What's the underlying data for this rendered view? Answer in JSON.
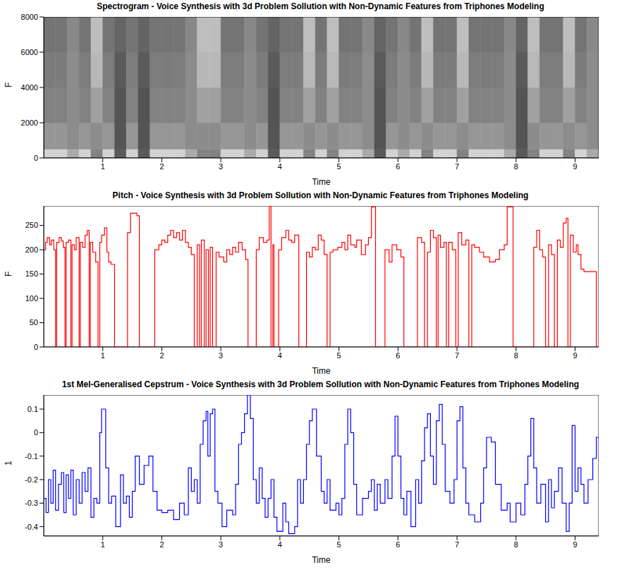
{
  "chart_data": [
    {
      "type": "heatmap",
      "title": "Spectrogram - Voice Synthesis with 3d Problem Sollution with Non-Dynamic Features from Triphones Modeling",
      "x_label": "Time",
      "y_label": "F",
      "xlim": [
        0,
        9.4
      ],
      "xticks": [
        1,
        2,
        3,
        4,
        5,
        6,
        7,
        8,
        9
      ],
      "ylim": [
        0,
        8000
      ],
      "yticks": [
        0,
        2000,
        4000,
        6000,
        8000
      ],
      "x_bins": [
        0,
        0.2,
        0.4,
        0.6,
        0.8,
        1,
        1.2,
        1.4,
        1.6,
        1.8,
        2,
        2.2,
        2.4,
        2.6,
        2.8,
        3,
        3.2,
        3.4,
        3.6,
        3.8,
        4,
        4.2,
        4.4,
        4.6,
        4.8,
        5,
        5.2,
        5.4,
        5.6,
        5.8,
        6,
        6.2,
        6.4,
        6.6,
        6.8,
        7,
        7.2,
        7.4,
        7.6,
        7.8,
        8,
        8.2,
        8.4,
        8.6,
        8.8,
        9,
        9.2,
        9.4
      ],
      "y_bins": [
        0,
        500,
        2000,
        4000,
        6000,
        8000
      ],
      "zlim": [
        0,
        1
      ],
      "cells": [
        [
          0.85,
          0.85,
          0.65,
          0.85,
          0.45,
          0.85,
          0.25,
          0.85,
          0.25,
          0.85,
          0.85,
          0.85,
          0.65,
          0.45,
          0.45,
          0.85,
          0.85,
          0.65,
          0.85,
          0.25,
          0.85,
          0.85,
          0.45,
          0.85,
          0.45,
          0.85,
          0.85,
          0.65,
          0.25,
          0.85,
          0.65,
          0.85,
          0.45,
          0.85,
          0.85,
          0.45,
          0.85,
          0.85,
          0.85,
          0.65,
          0.25,
          0.45,
          0.85,
          0.85,
          0.45,
          0.85,
          0.65
        ],
        [
          0.55,
          0.55,
          0.5,
          0.55,
          0.5,
          0.55,
          0.22,
          0.55,
          0.22,
          0.55,
          0.55,
          0.55,
          0.5,
          0.5,
          0.5,
          0.55,
          0.55,
          0.5,
          0.55,
          0.22,
          0.55,
          0.55,
          0.5,
          0.55,
          0.5,
          0.55,
          0.55,
          0.5,
          0.22,
          0.55,
          0.5,
          0.55,
          0.5,
          0.55,
          0.55,
          0.5,
          0.55,
          0.55,
          0.55,
          0.5,
          0.22,
          0.5,
          0.55,
          0.55,
          0.5,
          0.55,
          0.5
        ],
        [
          0.45,
          0.45,
          0.5,
          0.45,
          0.6,
          0.45,
          0.22,
          0.45,
          0.22,
          0.45,
          0.45,
          0.45,
          0.5,
          0.6,
          0.6,
          0.45,
          0.45,
          0.5,
          0.45,
          0.22,
          0.45,
          0.45,
          0.6,
          0.45,
          0.6,
          0.45,
          0.45,
          0.5,
          0.22,
          0.45,
          0.5,
          0.45,
          0.6,
          0.45,
          0.45,
          0.6,
          0.45,
          0.45,
          0.45,
          0.5,
          0.22,
          0.6,
          0.45,
          0.45,
          0.6,
          0.45,
          0.5
        ],
        [
          0.42,
          0.42,
          0.5,
          0.42,
          0.72,
          0.42,
          0.25,
          0.42,
          0.25,
          0.42,
          0.42,
          0.42,
          0.5,
          0.72,
          0.72,
          0.42,
          0.42,
          0.5,
          0.42,
          0.25,
          0.42,
          0.42,
          0.72,
          0.42,
          0.72,
          0.42,
          0.42,
          0.5,
          0.25,
          0.42,
          0.5,
          0.42,
          0.72,
          0.42,
          0.42,
          0.72,
          0.42,
          0.42,
          0.42,
          0.5,
          0.25,
          0.72,
          0.42,
          0.42,
          0.72,
          0.42,
          0.5
        ],
        [
          0.38,
          0.38,
          0.48,
          0.38,
          0.75,
          0.38,
          0.3,
          0.38,
          0.3,
          0.38,
          0.38,
          0.38,
          0.48,
          0.75,
          0.75,
          0.38,
          0.38,
          0.48,
          0.38,
          0.3,
          0.38,
          0.38,
          0.75,
          0.38,
          0.75,
          0.38,
          0.38,
          0.48,
          0.3,
          0.38,
          0.48,
          0.38,
          0.75,
          0.38,
          0.38,
          0.75,
          0.38,
          0.38,
          0.38,
          0.48,
          0.3,
          0.75,
          0.38,
          0.38,
          0.75,
          0.38,
          0.48
        ]
      ]
    },
    {
      "type": "line",
      "title": "Pitch - Voice Synthesis with 3d Problem Sollution with Non-Dynamic Features from Triphones Modeling",
      "x_label": "Time",
      "y_label": "F",
      "xlim": [
        0,
        9.4
      ],
      "xticks": [
        1,
        2,
        3,
        4,
        5,
        6,
        7,
        8,
        9
      ],
      "ylim": [
        0,
        290
      ],
      "yticks": [
        0,
        50,
        100,
        150,
        200,
        250
      ],
      "color": "#ff0000",
      "line_style": "step",
      "x": [
        0,
        0.03,
        0.06,
        0.1,
        0.13,
        0.17,
        0.2,
        0.22,
        0.26,
        0.3,
        0.33,
        0.36,
        0.38,
        0.42,
        0.46,
        0.48,
        0.52,
        0.55,
        0.6,
        0.62,
        0.66,
        0.7,
        0.74,
        0.77,
        0.79,
        0.83,
        0.88,
        0.92,
        0.95,
        0.98,
        1.03,
        1.07,
        1.1,
        1.14,
        1.2,
        1.42,
        1.47,
        1.58,
        1.62,
        1.88,
        1.95,
        2,
        2.05,
        2.1,
        2.15,
        2.2,
        2.25,
        2.3,
        2.35,
        2.4,
        2.45,
        2.5,
        2.55,
        2.6,
        2.64,
        2.67,
        2.72,
        2.75,
        2.79,
        2.82,
        2.86,
        2.92,
        2.97,
        3.05,
        3.1,
        3.15,
        3.2,
        3.25,
        3.3,
        3.36,
        3.42,
        3.46,
        3.6,
        3.65,
        3.72,
        3.78,
        3.82,
        3.85,
        3.88,
        3.9,
        3.98,
        4.03,
        4.1,
        4.15,
        4.2,
        4.25,
        4.32,
        4.45,
        4.5,
        4.55,
        4.6,
        4.65,
        4.7,
        4.75,
        4.8,
        4.85,
        4.9,
        4.98,
        5.05,
        5.1,
        5.15,
        5.2,
        5.27,
        5.3,
        5.38,
        5.45,
        5.5,
        5.55,
        5.62,
        5.78,
        5.85,
        5.9,
        5.98,
        6.05,
        6.1,
        6.33,
        6.4,
        6.45,
        6.5,
        6.55,
        6.6,
        6.65,
        6.68,
        6.72,
        6.78,
        6.82,
        6.86,
        6.92,
        6.98,
        7.02,
        7.08,
        7.15,
        7.2,
        7.25,
        7.3,
        7.38,
        7.45,
        7.55,
        7.65,
        7.72,
        7.8,
        7.85,
        7.95,
        8.3,
        8.35,
        8.4,
        8.45,
        8.5,
        8.55,
        8.6,
        8.65,
        8.7,
        8.75,
        8.8,
        8.85,
        8.88,
        8.92,
        8.97,
        9.02,
        9.05,
        9.1,
        9.15,
        9.36,
        9.4
      ],
      "values": [
        200,
        215,
        225,
        210,
        220,
        200,
        0,
        215,
        225,
        218,
        205,
        0,
        215,
        220,
        0,
        210,
        200,
        225,
        0,
        215,
        205,
        230,
        240,
        0,
        215,
        195,
        175,
        0,
        215,
        230,
        245,
        195,
        175,
        170,
        0,
        235,
        275,
        270,
        0,
        200,
        210,
        220,
        215,
        230,
        240,
        225,
        235,
        220,
        240,
        215,
        205,
        190,
        0,
        210,
        0,
        220,
        0,
        200,
        0,
        205,
        0,
        195,
        185,
        175,
        200,
        190,
        205,
        195,
        215,
        200,
        180,
        0,
        200,
        225,
        215,
        220,
        290,
        0,
        210,
        0,
        200,
        225,
        240,
        220,
        215,
        230,
        0,
        195,
        185,
        205,
        200,
        230,
        220,
        190,
        0,
        195,
        200,
        205,
        215,
        200,
        230,
        210,
        205,
        220,
        190,
        210,
        225,
        288,
        0,
        200,
        175,
        210,
        200,
        185,
        0,
        225,
        215,
        0,
        195,
        240,
        225,
        0,
        230,
        205,
        215,
        0,
        215,
        200,
        0,
        235,
        210,
        220,
        0,
        210,
        205,
        195,
        185,
        175,
        180,
        200,
        210,
        288,
        0,
        205,
        240,
        200,
        185,
        0,
        210,
        190,
        0,
        220,
        205,
        255,
        265,
        0,
        230,
        195,
        210,
        190,
        160,
        155,
        0,
        0
      ]
    },
    {
      "type": "line",
      "title": "1st Mel-Generalised Cepstrum - Voice Synthesis with 3d Problem Sollution with Non-Dynamic Features from Triphones Modeling",
      "x_label": "Time",
      "y_label": "1",
      "xlim": [
        0,
        9.4
      ],
      "xticks": [
        1,
        2,
        3,
        4,
        5,
        6,
        7,
        8,
        9
      ],
      "ylim": [
        -0.44,
        0.16
      ],
      "yticks": [
        -0.4,
        -0.3,
        -0.2,
        -0.1,
        0,
        0.1
      ],
      "color": "#0000ff",
      "line_style": "step",
      "x": [
        0,
        0.04,
        0.08,
        0.12,
        0.16,
        0.2,
        0.25,
        0.3,
        0.34,
        0.38,
        0.42,
        0.46,
        0.5,
        0.55,
        0.6,
        0.65,
        0.7,
        0.75,
        0.8,
        0.85,
        0.9,
        0.95,
        0.98,
        1.05,
        1.1,
        1.15,
        1.22,
        1.3,
        1.35,
        1.4,
        1.45,
        1.5,
        1.55,
        1.62,
        1.7,
        1.78,
        1.85,
        1.92,
        2,
        2.1,
        2.2,
        2.3,
        2.38,
        2.45,
        2.5,
        2.55,
        2.6,
        2.65,
        2.7,
        2.75,
        2.78,
        2.82,
        2.86,
        2.9,
        2.95,
        3.02,
        3.1,
        3.2,
        3.25,
        3.3,
        3.35,
        3.4,
        3.45,
        3.5,
        3.55,
        3.6,
        3.65,
        3.7,
        3.75,
        3.8,
        3.85,
        3.9,
        3.95,
        4.05,
        4.1,
        4.15,
        4.25,
        4.3,
        4.35,
        4.4,
        4.45,
        4.5,
        4.55,
        4.62,
        4.7,
        4.75,
        4.8,
        4.85,
        4.95,
        5,
        5.05,
        5.1,
        5.15,
        5.2,
        5.25,
        5.3,
        5.4,
        5.5,
        5.55,
        5.6,
        5.65,
        5.7,
        5.78,
        5.83,
        5.9,
        5.95,
        6,
        6.05,
        6.1,
        6.15,
        6.22,
        6.3,
        6.35,
        6.4,
        6.45,
        6.5,
        6.55,
        6.6,
        6.65,
        6.7,
        6.75,
        6.8,
        6.88,
        6.95,
        7,
        7.05,
        7.1,
        7.15,
        7.2,
        7.3,
        7.4,
        7.45,
        7.5,
        7.58,
        7.65,
        7.75,
        7.85,
        7.9,
        8,
        8.08,
        8.15,
        8.2,
        8.25,
        8.3,
        8.35,
        8.42,
        8.5,
        8.55,
        8.6,
        8.65,
        8.72,
        8.78,
        8.85,
        8.9,
        8.95,
        9,
        9.05,
        9.1,
        9.15,
        9.22,
        9.3,
        9.36,
        9.4
      ],
      "values": [
        -0.28,
        -0.34,
        -0.2,
        -0.3,
        -0.16,
        -0.33,
        -0.22,
        -0.17,
        -0.34,
        -0.18,
        -0.28,
        -0.16,
        -0.35,
        -0.2,
        -0.3,
        -0.17,
        -0.25,
        -0.15,
        -0.36,
        -0.28,
        -0.3,
        0,
        0.1,
        -0.15,
        -0.3,
        -0.27,
        -0.4,
        -0.18,
        -0.3,
        -0.27,
        -0.36,
        -0.25,
        -0.1,
        -0.22,
        -0.14,
        -0.1,
        -0.25,
        -0.33,
        -0.34,
        -0.33,
        -0.37,
        -0.3,
        -0.35,
        -0.15,
        -0.25,
        -0.2,
        -0.3,
        -0.05,
        0.05,
        0.09,
        -0.1,
        0.08,
        0.1,
        -0.25,
        -0.3,
        -0.4,
        -0.33,
        -0.35,
        -0.22,
        -0.05,
        0,
        0.08,
        0.16,
        0.06,
        -0.2,
        -0.3,
        -0.15,
        -0.28,
        -0.36,
        -0.28,
        -0.2,
        -0.36,
        -0.42,
        -0.3,
        -0.38,
        -0.43,
        -0.4,
        -0.2,
        -0.3,
        -0.2,
        -0.05,
        0.05,
        0.1,
        -0.1,
        -0.25,
        -0.3,
        -0.2,
        -0.33,
        -0.3,
        -0.35,
        -0.28,
        -0.05,
        0.1,
        0,
        -0.22,
        -0.35,
        -0.28,
        -0.25,
        -0.2,
        -0.33,
        -0.22,
        -0.3,
        -0.2,
        -0.28,
        -0.1,
        0.07,
        -0.1,
        -0.28,
        -0.35,
        -0.25,
        -0.4,
        -0.2,
        -0.3,
        -0.12,
        0.02,
        0.08,
        -0.1,
        -0.22,
        0.05,
        0.12,
        -0.05,
        -0.25,
        -0.3,
        -0.2,
        0.05,
        0.11,
        -0.15,
        -0.3,
        -0.35,
        -0.38,
        -0.3,
        -0.15,
        -0.02,
        -0.04,
        -0.22,
        -0.33,
        -0.3,
        -0.38,
        -0.3,
        -0.35,
        -0.22,
        -0.1,
        0.06,
        -0.15,
        -0.3,
        -0.22,
        -0.38,
        -0.2,
        -0.32,
        -0.25,
        -0.15,
        -0.3,
        -0.42,
        -0.3,
        0.03,
        -0.25,
        -0.15,
        -0.22,
        -0.3,
        -0.2,
        -0.11,
        -0.02,
        -0.02
      ]
    }
  ]
}
